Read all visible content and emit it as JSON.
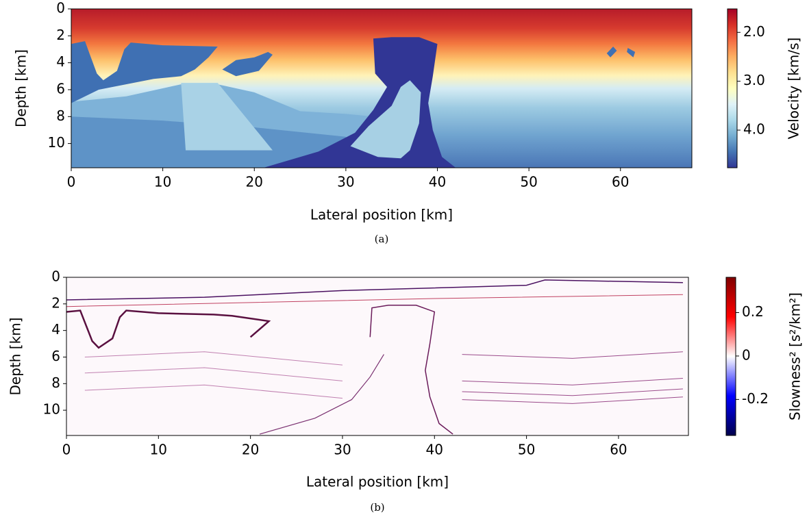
{
  "chart_data": [
    {
      "type": "image",
      "caption": "(a)",
      "xlabel": "Lateral position [km]",
      "ylabel": "Depth [km]",
      "xlim": [
        0,
        67.8
      ],
      "xticks": [
        0,
        10,
        20,
        30,
        40,
        50,
        60
      ],
      "ylim": [
        11.8,
        0
      ],
      "yticks": [
        0,
        2,
        4,
        6,
        8,
        10
      ],
      "colormap": "RdYlBu_r",
      "colorbar_label": "Velocity [km/s]",
      "colorbar_lim": [
        4.77,
        1.52
      ],
      "colorbar_ticks": [
        {
          "value": 2,
          "label": "2.0"
        },
        {
          "value": 3,
          "label": "3.0"
        },
        {
          "value": 4,
          "label": "4.0"
        }
      ]
    },
    {
      "type": "image",
      "caption": "(b)",
      "xlabel": "Lateral position [km]",
      "ylabel": "Depth [km]",
      "xlim": [
        0,
        67.6
      ],
      "xticks": [
        0,
        10,
        20,
        30,
        40,
        50,
        60
      ],
      "ylim": [
        11.9,
        0
      ],
      "yticks": [
        0,
        2,
        4,
        6,
        8,
        10
      ],
      "colormap": "seismic",
      "colorbar_label": "Slowness² [s²/km²]",
      "colorbar_lim": [
        -0.366,
        0.3625
      ],
      "colorbar_ticks": [
        0.2,
        0,
        -0.2
      ]
    }
  ]
}
